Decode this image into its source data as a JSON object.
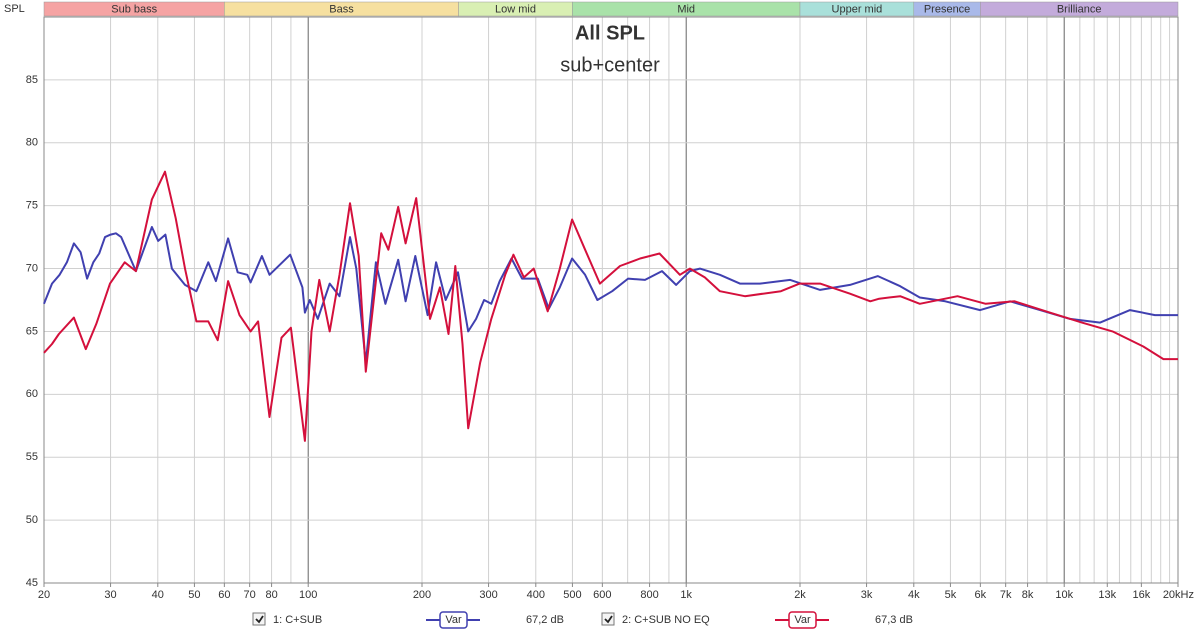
{
  "chart_data": {
    "type": "line",
    "title": "All SPL",
    "subtitle": "sub+center",
    "ylabel": "SPL",
    "xscale": "log",
    "xlim": [
      20,
      20000
    ],
    "ylim": [
      45,
      90
    ],
    "yticks": [
      45,
      50,
      55,
      60,
      65,
      70,
      75,
      80,
      85
    ],
    "xticks": [
      20,
      30,
      40,
      50,
      60,
      70,
      80,
      100,
      200,
      300,
      400,
      500,
      600,
      800,
      {
        "value": 1000,
        "label": "1k"
      },
      {
        "value": 2000,
        "label": "2k"
      },
      {
        "value": 3000,
        "label": "3k"
      },
      {
        "value": 4000,
        "label": "4k"
      },
      {
        "value": 5000,
        "label": "5k"
      },
      {
        "value": 6000,
        "label": "6k"
      },
      {
        "value": 7000,
        "label": "7k"
      },
      {
        "value": 8000,
        "label": "8k"
      },
      {
        "value": 10000,
        "label": "10k"
      },
      {
        "value": 13000,
        "label": "13k"
      },
      {
        "value": 16000,
        "label": "16k"
      },
      {
        "value": 20000,
        "label": "20kHz"
      }
    ],
    "xgrid": [
      20,
      30,
      40,
      50,
      60,
      70,
      80,
      90,
      100,
      200,
      300,
      400,
      500,
      600,
      700,
      800,
      900,
      1000,
      2000,
      3000,
      4000,
      5000,
      6000,
      7000,
      8000,
      9000,
      10000,
      11000,
      12000,
      13000,
      14000,
      15000,
      16000,
      17000,
      18000,
      19000,
      20000
    ],
    "xmajor": [
      100,
      1000,
      10000
    ],
    "grid": true,
    "bands": [
      {
        "name": "Sub bass",
        "range": [
          20,
          60
        ],
        "color": "#f5a3a3"
      },
      {
        "name": "Bass",
        "range": [
          60,
          250
        ],
        "color": "#f6e0a0"
      },
      {
        "name": "Low mid",
        "range": [
          250,
          500
        ],
        "color": "#d9efb3"
      },
      {
        "name": "Mid",
        "range": [
          500,
          2000
        ],
        "color": "#a9e2a9"
      },
      {
        "name": "Upper mid",
        "range": [
          2000,
          4000
        ],
        "color": "#a9e0da"
      },
      {
        "name": "Presence",
        "range": [
          4000,
          6000
        ],
        "color": "#a9b9e9"
      },
      {
        "name": "Brilliance",
        "range": [
          6000,
          20000
        ],
        "color": "#c3abdb"
      }
    ],
    "series": [
      {
        "name": "1: C+SUB",
        "color": "#4040b0",
        "legend_tag": "Var",
        "legend_value": "67,2 dB",
        "x": [
          20,
          21,
          22,
          23,
          24,
          25,
          26,
          27,
          28,
          29,
          30,
          31,
          32,
          35,
          38.6,
          40.1,
          41.9,
          43.6,
          47.2,
          50.6,
          54.4,
          57,
          61.4,
          65.1,
          69,
          70.4,
          75.4,
          79,
          89.6,
          96.5,
          98,
          101,
          106,
          114,
          121,
          129,
          134,
          142,
          151,
          160,
          173,
          181,
          192,
          207,
          218,
          231,
          249,
          265,
          278,
          292,
          305,
          321,
          345,
          368,
          405,
          433,
          463,
          499,
          540,
          582,
          637,
          702,
          778,
          863,
          940,
          1023,
          1087,
          1228,
          1387,
          1567,
          1884,
          2260,
          2712,
          3214,
          3682,
          4150,
          4842,
          5990,
          7190,
          8630,
          10357,
          12440,
          14930,
          17380,
          20000
        ],
        "values": [
          67.2,
          68.8,
          69.5,
          70.5,
          72.0,
          71.3,
          69.2,
          70.5,
          71.2,
          72.5,
          72.7,
          72.8,
          72.5,
          69.8,
          73.3,
          72.2,
          72.7,
          70.0,
          68.7,
          68.2,
          70.5,
          69.0,
          72.4,
          69.7,
          69.5,
          68.9,
          71.0,
          69.5,
          71.1,
          68.5,
          66.5,
          67.5,
          66.0,
          68.8,
          67.8,
          72.5,
          70.0,
          62.5,
          70.5,
          67.2,
          70.7,
          67.4,
          71.0,
          66.3,
          70.5,
          67.5,
          69.7,
          65.0,
          66.0,
          67.5,
          67.2,
          69.0,
          70.8,
          69.2,
          69.2,
          66.8,
          68.5,
          70.8,
          69.5,
          67.5,
          68.2,
          69.2,
          69.1,
          69.8,
          68.7,
          69.8,
          70.0,
          69.5,
          68.8,
          68.8,
          69.1,
          68.3,
          68.7,
          69.4,
          68.6,
          67.7,
          67.4,
          66.7,
          67.4,
          66.7,
          66.0,
          65.7,
          66.7,
          66.3,
          66.3
        ]
      },
      {
        "name": "2: C+SUB NO EQ",
        "color": "#d4103c",
        "legend_tag": "Var",
        "legend_value": "67,3 dB",
        "x": [
          20,
          21,
          21.9,
          24,
          25.8,
          27.5,
          29.9,
          32.7,
          35,
          38.6,
          41.8,
          44.6,
          47.2,
          50.6,
          54.4,
          57.6,
          61.4,
          65.8,
          70.4,
          73.7,
          79,
          85,
          90,
          98,
          102,
          107,
          114,
          121,
          129,
          136,
          142,
          156,
          163,
          173,
          181,
          193,
          210,
          223,
          235,
          245,
          256,
          265,
          285,
          305,
          332,
          349,
          372,
          395,
          430,
          463,
          499,
          540,
          591,
          668,
          755,
          850,
          962,
          1023,
          1120,
          1228,
          1430,
          1780,
          1996,
          2260,
          2712,
          3070,
          3240,
          3682,
          4150,
          5220,
          6200,
          7390,
          9160,
          11140,
          13420,
          16190,
          18300,
          20000
        ],
        "values": [
          63.3,
          64.0,
          64.8,
          66.1,
          63.6,
          65.6,
          68.8,
          70.5,
          69.8,
          75.5,
          77.7,
          74.0,
          70.0,
          65.8,
          65.8,
          64.3,
          69.0,
          66.3,
          65.0,
          65.8,
          58.2,
          64.5,
          65.3,
          56.3,
          65.0,
          69.1,
          65.0,
          69.5,
          75.2,
          71.0,
          61.8,
          72.8,
          71.5,
          74.9,
          72.0,
          75.6,
          66.0,
          68.5,
          64.8,
          70.2,
          64.0,
          57.3,
          62.5,
          66.0,
          69.5,
          71.1,
          69.3,
          70.0,
          66.6,
          70.0,
          73.9,
          71.5,
          68.8,
          70.2,
          70.8,
          71.2,
          69.5,
          70.0,
          69.3,
          68.2,
          67.8,
          68.2,
          68.8,
          68.8,
          68.0,
          67.4,
          67.6,
          67.8,
          67.2,
          67.8,
          67.2,
          67.4,
          66.5,
          65.7,
          65.0,
          63.8,
          62.8,
          62.8
        ]
      }
    ]
  }
}
